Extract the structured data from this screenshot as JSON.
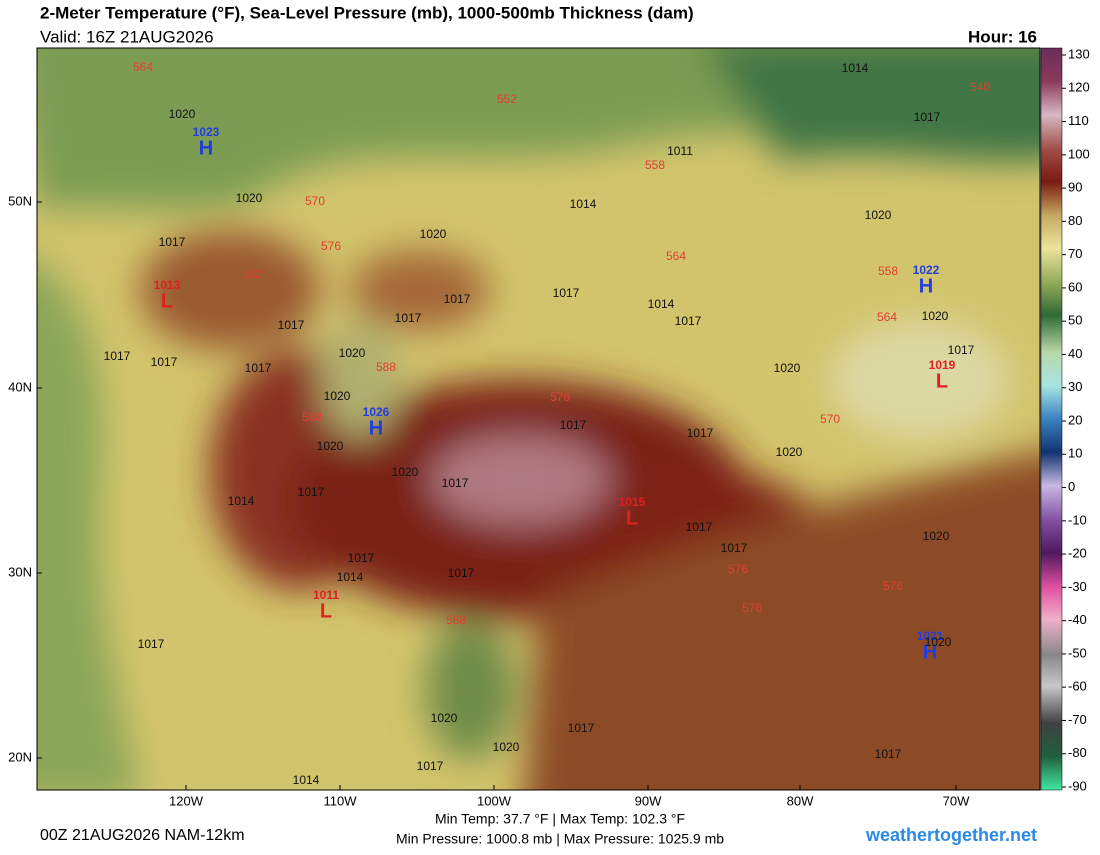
{
  "header": {
    "title": "2-Meter Temperature (°F), Sea-Level Pressure (mb), 1000-500mb Thickness (dam)",
    "valid": "Valid: 16Z 21AUG2026",
    "hour": "Hour: 16"
  },
  "map": {
    "lat_labels": [
      "50N",
      "40N",
      "30N",
      "20N"
    ],
    "lon_labels": [
      "120W",
      "110W",
      "100W",
      "90W",
      "80W",
      "70W"
    ],
    "highs": [
      {
        "value": 1023,
        "symbol": "H"
      },
      {
        "value": 1026,
        "symbol": "H"
      },
      {
        "value": 1022,
        "symbol": "H"
      },
      {
        "value": 1021,
        "symbol": "H"
      }
    ],
    "lows": [
      {
        "value": 1013,
        "symbol": "L"
      },
      {
        "value": 1019,
        "symbol": "L"
      },
      {
        "value": 1015,
        "symbol": "L"
      },
      {
        "value": 1011,
        "symbol": "L"
      }
    ],
    "thickness_labels": [
      564,
      552,
      558,
      570,
      576,
      582,
      588,
      588,
      576,
      570,
      564,
      558,
      564,
      576,
      576,
      576,
      588,
      540
    ],
    "isobar_labels": [
      1014,
      1017,
      1011,
      1020,
      1020,
      1014,
      1020,
      1017,
      1017,
      1017,
      1014,
      1017,
      1017,
      1017,
      1020,
      1017,
      1017,
      1017,
      1020,
      1020,
      1017,
      1020,
      1020,
      1017,
      1017,
      1020,
      1020,
      1020,
      1017,
      1017,
      1014,
      1017,
      1017,
      1017,
      1014,
      1017,
      1017,
      1020,
      1020,
      1017,
      1020,
      1020,
      1017,
      1014,
      1017
    ]
  },
  "colorbar": {
    "ticks": [
      130,
      120,
      110,
      100,
      90,
      80,
      70,
      60,
      50,
      40,
      30,
      20,
      10,
      0,
      -10,
      -20,
      -30,
      -40,
      -50,
      -60,
      -70,
      -80,
      -90
    ]
  },
  "footer": {
    "run": "00Z 21AUG2026 NAM-12km",
    "temps": "Min Temp:  37.7 °F | Max Temp: 102.3 °F",
    "pressures": "Min Pressure: 1000.8 mb | Max Pressure: 1025.9 mb",
    "site": "weathertogether.net"
  }
}
